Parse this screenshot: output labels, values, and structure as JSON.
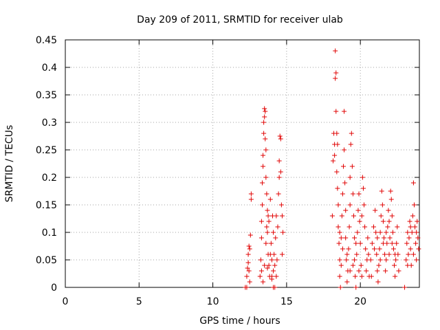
{
  "chart_data": {
    "type": "scatter",
    "title": "Day 209 of 2011, SRMTID for receiver ulab",
    "xlabel": "GPS time / hours",
    "ylabel": "SRMTID / TECUs",
    "xlim": [
      0,
      24
    ],
    "ylim": [
      0,
      0.45
    ],
    "x_ticks": [
      0,
      5,
      10,
      15,
      20
    ],
    "x_tick_labels": [
      "0",
      "5",
      "10",
      "15",
      "20"
    ],
    "y_ticks": [
      0,
      0.05,
      0.1,
      0.15,
      0.2,
      0.25,
      0.3,
      0.35,
      0.4,
      0.45
    ],
    "y_tick_labels": [
      "0",
      "0.05",
      "0.1",
      "0.15",
      "0.2",
      "0.25",
      "0.3",
      "0.35",
      "0.4",
      "0.45"
    ],
    "grid": true,
    "marker": "+",
    "color": "#e00000",
    "series": [
      {
        "name": "SRMTID",
        "points": [
          [
            12.2,
            0.0
          ],
          [
            12.3,
            0.0
          ],
          [
            12.3,
            0.02
          ],
          [
            12.35,
            0.035
          ],
          [
            12.4,
            0.06
          ],
          [
            12.45,
            0.075
          ],
          [
            12.5,
            0.01
          ],
          [
            12.5,
            0.07
          ],
          [
            12.55,
            0.095
          ],
          [
            12.6,
            0.16
          ],
          [
            12.6,
            0.17
          ],
          [
            12.45,
            0.03
          ],
          [
            12.4,
            0.045
          ],
          [
            13.2,
            0.02
          ],
          [
            13.25,
            0.05
          ],
          [
            13.3,
            0.09
          ],
          [
            13.3,
            0.12
          ],
          [
            13.35,
            0.15
          ],
          [
            13.35,
            0.19
          ],
          [
            13.4,
            0.22
          ],
          [
            13.4,
            0.24
          ],
          [
            13.45,
            0.28
          ],
          [
            13.45,
            0.3
          ],
          [
            13.5,
            0.31
          ],
          [
            13.5,
            0.325
          ],
          [
            13.55,
            0.32
          ],
          [
            13.55,
            0.27
          ],
          [
            13.6,
            0.25
          ],
          [
            13.6,
            0.2
          ],
          [
            13.65,
            0.17
          ],
          [
            13.7,
            0.14
          ],
          [
            13.7,
            0.1
          ],
          [
            13.75,
            0.06
          ],
          [
            13.8,
            0.04
          ],
          [
            13.85,
            0.02
          ],
          [
            13.4,
            0.01
          ],
          [
            13.5,
            0.04
          ],
          [
            13.3,
            0.03
          ],
          [
            13.6,
            0.08
          ],
          [
            13.65,
            0.11
          ],
          [
            13.75,
            0.13
          ],
          [
            13.8,
            0.12
          ],
          [
            13.9,
            0.16
          ],
          [
            13.95,
            0.08
          ],
          [
            14.0,
            0.05
          ],
          [
            14.0,
            0.02
          ],
          [
            14.05,
            0.13
          ],
          [
            14.1,
            0.1
          ],
          [
            14.1,
            0.03
          ],
          [
            14.15,
            0.06
          ],
          [
            14.2,
            0.0
          ],
          [
            14.2,
            0.04
          ],
          [
            14.25,
            0.09
          ],
          [
            14.3,
            0.13
          ],
          [
            14.3,
            0.02
          ],
          [
            14.35,
            0.05
          ],
          [
            14.4,
            0.11
          ],
          [
            14.45,
            0.17
          ],
          [
            14.5,
            0.2
          ],
          [
            14.5,
            0.23
          ],
          [
            14.55,
            0.275
          ],
          [
            14.6,
            0.27
          ],
          [
            14.6,
            0.21
          ],
          [
            14.65,
            0.15
          ],
          [
            14.7,
            0.13
          ],
          [
            14.75,
            0.1
          ],
          [
            14.7,
            0.06
          ],
          [
            13.7,
            0.035
          ],
          [
            13.9,
            0.06
          ],
          [
            14.0,
            0.015
          ],
          [
            14.1,
            0.0
          ],
          [
            18.1,
            0.13
          ],
          [
            18.15,
            0.23
          ],
          [
            18.2,
            0.28
          ],
          [
            18.25,
            0.26
          ],
          [
            18.3,
            0.38
          ],
          [
            18.3,
            0.43
          ],
          [
            18.35,
            0.39
          ],
          [
            18.35,
            0.32
          ],
          [
            18.4,
            0.28
          ],
          [
            18.4,
            0.21
          ],
          [
            18.45,
            0.18
          ],
          [
            18.5,
            0.15
          ],
          [
            18.5,
            0.11
          ],
          [
            18.55,
            0.08
          ],
          [
            18.6,
            0.05
          ],
          [
            18.6,
            0.02
          ],
          [
            18.65,
            0.0
          ],
          [
            18.7,
            0.04
          ],
          [
            18.7,
            0.09
          ],
          [
            18.75,
            0.13
          ],
          [
            18.8,
            0.17
          ],
          [
            18.85,
            0.22
          ],
          [
            18.9,
            0.32
          ],
          [
            18.9,
            0.25
          ],
          [
            18.95,
            0.19
          ],
          [
            19.0,
            0.14
          ],
          [
            19.0,
            0.09
          ],
          [
            19.05,
            0.05
          ],
          [
            19.1,
            0.01
          ],
          [
            19.15,
            0.03
          ],
          [
            19.2,
            0.07
          ],
          [
            19.25,
            0.11
          ],
          [
            19.3,
            0.15
          ],
          [
            19.3,
            0.2
          ],
          [
            19.35,
            0.26
          ],
          [
            19.4,
            0.28
          ],
          [
            19.45,
            0.22
          ],
          [
            19.5,
            0.17
          ],
          [
            19.55,
            0.13
          ],
          [
            19.6,
            0.09
          ],
          [
            19.6,
            0.05
          ],
          [
            19.65,
            0.02
          ],
          [
            19.7,
            0.0
          ],
          [
            19.75,
            0.06
          ],
          [
            19.8,
            0.1
          ],
          [
            19.85,
            0.14
          ],
          [
            19.9,
            0.17
          ],
          [
            19.95,
            0.12
          ],
          [
            20.0,
            0.08
          ],
          [
            20.05,
            0.04
          ],
          [
            20.1,
            0.02
          ],
          [
            20.15,
            0.2
          ],
          [
            20.2,
            0.18
          ],
          [
            20.25,
            0.15
          ],
          [
            20.3,
            0.11
          ],
          [
            20.35,
            0.07
          ],
          [
            20.4,
            0.03
          ],
          [
            20.45,
            0.05
          ],
          [
            20.5,
            0.09
          ],
          [
            20.55,
            0.06
          ],
          [
            18.6,
            0.1
          ],
          [
            18.8,
            0.07
          ],
          [
            19.1,
            0.06
          ],
          [
            19.3,
            0.03
          ],
          [
            19.5,
            0.04
          ],
          [
            19.7,
            0.08
          ],
          [
            19.9,
            0.03
          ],
          [
            20.1,
            0.13
          ],
          [
            18.25,
            0.24
          ],
          [
            18.45,
            0.26
          ],
          [
            20.6,
            0.02
          ],
          [
            20.7,
            0.05
          ],
          [
            20.8,
            0.08
          ],
          [
            20.9,
            0.11
          ],
          [
            21.0,
            0.14
          ],
          [
            21.05,
            0.1
          ],
          [
            21.1,
            0.06
          ],
          [
            21.15,
            0.03
          ],
          [
            21.2,
            0.01
          ],
          [
            21.25,
            0.04
          ],
          [
            21.3,
            0.07
          ],
          [
            21.35,
            0.1
          ],
          [
            21.4,
            0.13
          ],
          [
            21.45,
            0.175
          ],
          [
            21.5,
            0.15
          ],
          [
            21.55,
            0.12
          ],
          [
            21.6,
            0.09
          ],
          [
            21.65,
            0.06
          ],
          [
            21.7,
            0.03
          ],
          [
            21.75,
            0.05
          ],
          [
            21.8,
            0.08
          ],
          [
            21.85,
            0.11
          ],
          [
            21.9,
            0.14
          ],
          [
            21.95,
            0.12
          ],
          [
            22.0,
            0.09
          ],
          [
            22.05,
            0.175
          ],
          [
            22.1,
            0.16
          ],
          [
            22.15,
            0.13
          ],
          [
            22.2,
            0.1
          ],
          [
            22.25,
            0.07
          ],
          [
            22.3,
            0.04
          ],
          [
            22.35,
            0.02
          ],
          [
            22.4,
            0.05
          ],
          [
            22.45,
            0.08
          ],
          [
            22.5,
            0.11
          ],
          [
            22.55,
            0.06
          ],
          [
            22.6,
            0.03
          ],
          [
            20.75,
            0.02
          ],
          [
            20.95,
            0.07
          ],
          [
            21.15,
            0.09
          ],
          [
            21.35,
            0.05
          ],
          [
            21.55,
            0.08
          ],
          [
            21.75,
            0.1
          ],
          [
            21.95,
            0.06
          ],
          [
            22.15,
            0.08
          ],
          [
            22.35,
            0.06
          ],
          [
            23.0,
            0.0
          ],
          [
            23.1,
            0.05
          ],
          [
            23.15,
            0.08
          ],
          [
            23.2,
            0.1
          ],
          [
            23.25,
            0.06
          ],
          [
            23.3,
            0.09
          ],
          [
            23.35,
            0.12
          ],
          [
            23.4,
            0.07
          ],
          [
            23.45,
            0.04
          ],
          [
            23.5,
            0.1
          ],
          [
            23.55,
            0.13
          ],
          [
            23.6,
            0.19
          ],
          [
            23.65,
            0.15
          ],
          [
            23.7,
            0.11
          ],
          [
            23.75,
            0.08
          ],
          [
            23.8,
            0.05
          ],
          [
            23.85,
            0.12
          ],
          [
            23.9,
            0.09
          ],
          [
            23.95,
            0.07
          ],
          [
            23.2,
            0.04
          ],
          [
            23.4,
            0.11
          ],
          [
            23.6,
            0.06
          ],
          [
            23.8,
            0.1
          ]
        ]
      }
    ]
  }
}
